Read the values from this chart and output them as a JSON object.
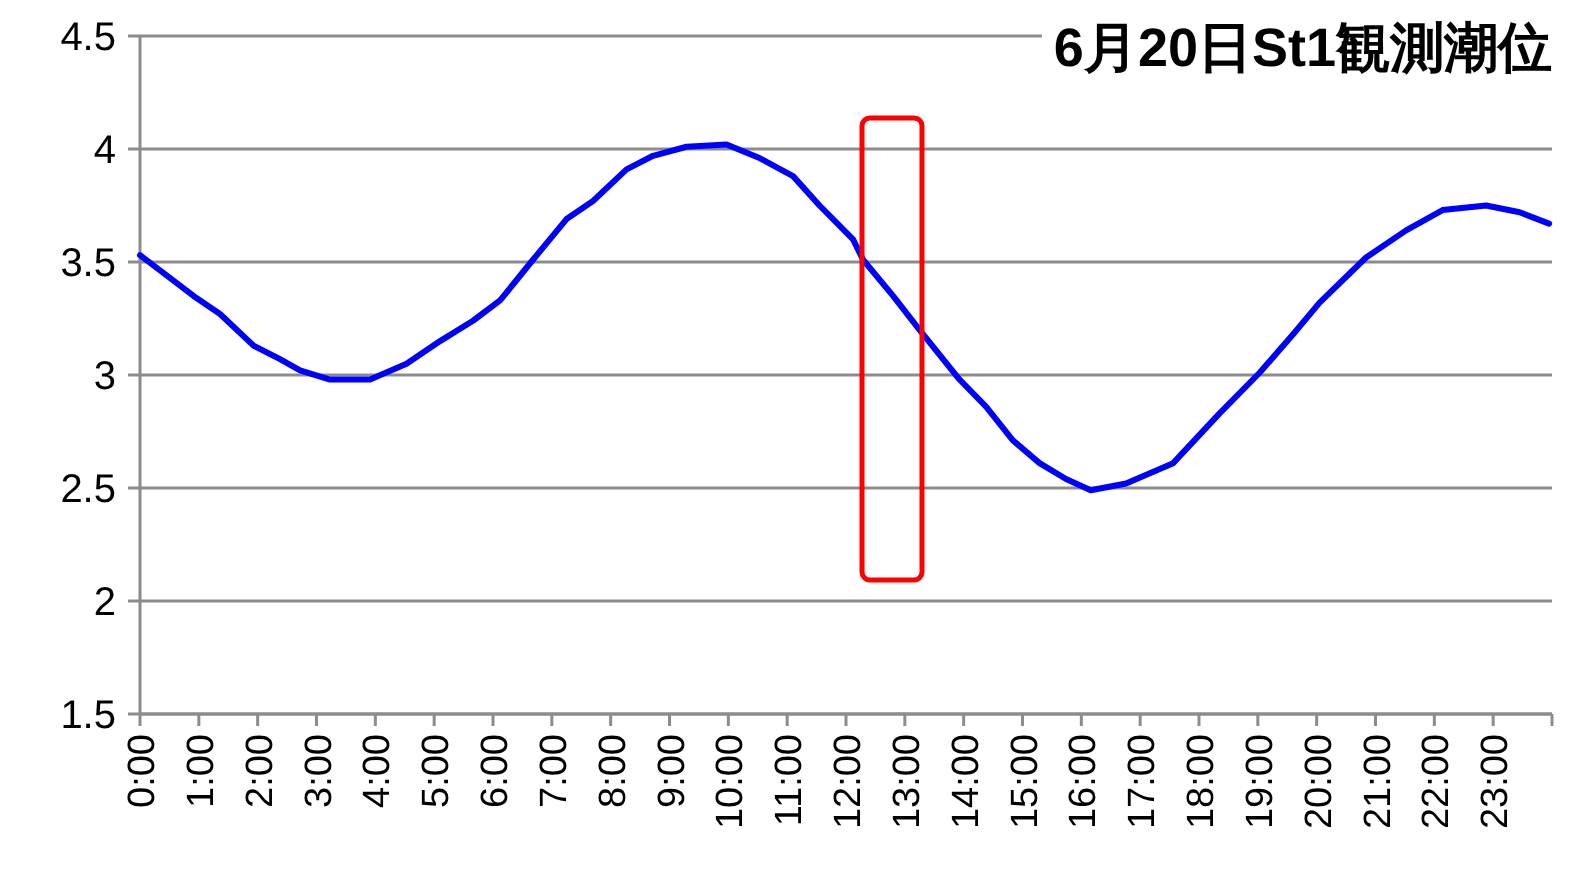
{
  "chart_data": {
    "type": "line",
    "title": "6月20日St1観測潮位",
    "x": [
      0,
      0.91,
      1.36,
      1.93,
      2.38,
      2.72,
      3.23,
      3.91,
      4.53,
      5.1,
      5.66,
      6.12,
      6.68,
      7.25,
      7.7,
      8.27,
      8.72,
      9.29,
      9.97,
      10.53,
      11.1,
      11.55,
      12.12,
      12.29,
      12.8,
      13.25,
      13.93,
      14.38,
      14.84,
      15.29,
      15.74,
      16.16,
      16.76,
      17.56,
      18.35,
      19.03,
      19.6,
      20.05,
      20.84,
      21.52,
      22.14,
      22.88,
      23.45,
      23.95
    ],
    "series": [
      {
        "color": "#0000ff",
        "values": [
          3.53,
          3.35,
          3.27,
          3.13,
          3.07,
          3.02,
          2.98,
          2.98,
          3.05,
          3.15,
          3.24,
          3.33,
          3.51,
          3.69,
          3.77,
          3.91,
          3.97,
          4.01,
          4.02,
          3.96,
          3.88,
          3.75,
          3.6,
          3.51,
          3.35,
          3.2,
          2.98,
          2.86,
          2.71,
          2.61,
          2.54,
          2.49,
          2.52,
          2.61,
          2.83,
          3.01,
          3.18,
          3.32,
          3.52,
          3.64,
          3.73,
          3.75,
          3.72,
          3.67
        ]
      }
    ],
    "xlim": [
      0,
      24
    ],
    "xticks": [
      {
        "value": 0,
        "label": "0:00"
      },
      {
        "value": 1,
        "label": "1:00"
      },
      {
        "value": 2,
        "label": "2:00"
      },
      {
        "value": 3,
        "label": "3:00"
      },
      {
        "value": 4,
        "label": "4:00"
      },
      {
        "value": 5,
        "label": "5:00"
      },
      {
        "value": 6,
        "label": "6:00"
      },
      {
        "value": 7,
        "label": "7:00"
      },
      {
        "value": 8,
        "label": "8:00"
      },
      {
        "value": 9,
        "label": "9:00"
      },
      {
        "value": 10,
        "label": "10:00"
      },
      {
        "value": 11,
        "label": "11:00"
      },
      {
        "value": 12,
        "label": "12:00"
      },
      {
        "value": 13,
        "label": "13:00"
      },
      {
        "value": 14,
        "label": "14:00"
      },
      {
        "value": 15,
        "label": "15:00"
      },
      {
        "value": 16,
        "label": "16:00"
      },
      {
        "value": 17,
        "label": "17:00"
      },
      {
        "value": 18,
        "label": "18:00"
      },
      {
        "value": 19,
        "label": "19:00"
      },
      {
        "value": 20,
        "label": "20:00"
      },
      {
        "value": 21,
        "label": "21:00"
      },
      {
        "value": 22,
        "label": "22:00"
      },
      {
        "value": 23,
        "label": "23:00"
      },
      {
        "value": 24,
        "label": null
      }
    ],
    "ylim": [
      1.5,
      4.5
    ],
    "yticks": [
      1.5,
      2,
      2.5,
      3,
      3.5,
      4,
      4.5
    ],
    "grid": "y"
  }
}
